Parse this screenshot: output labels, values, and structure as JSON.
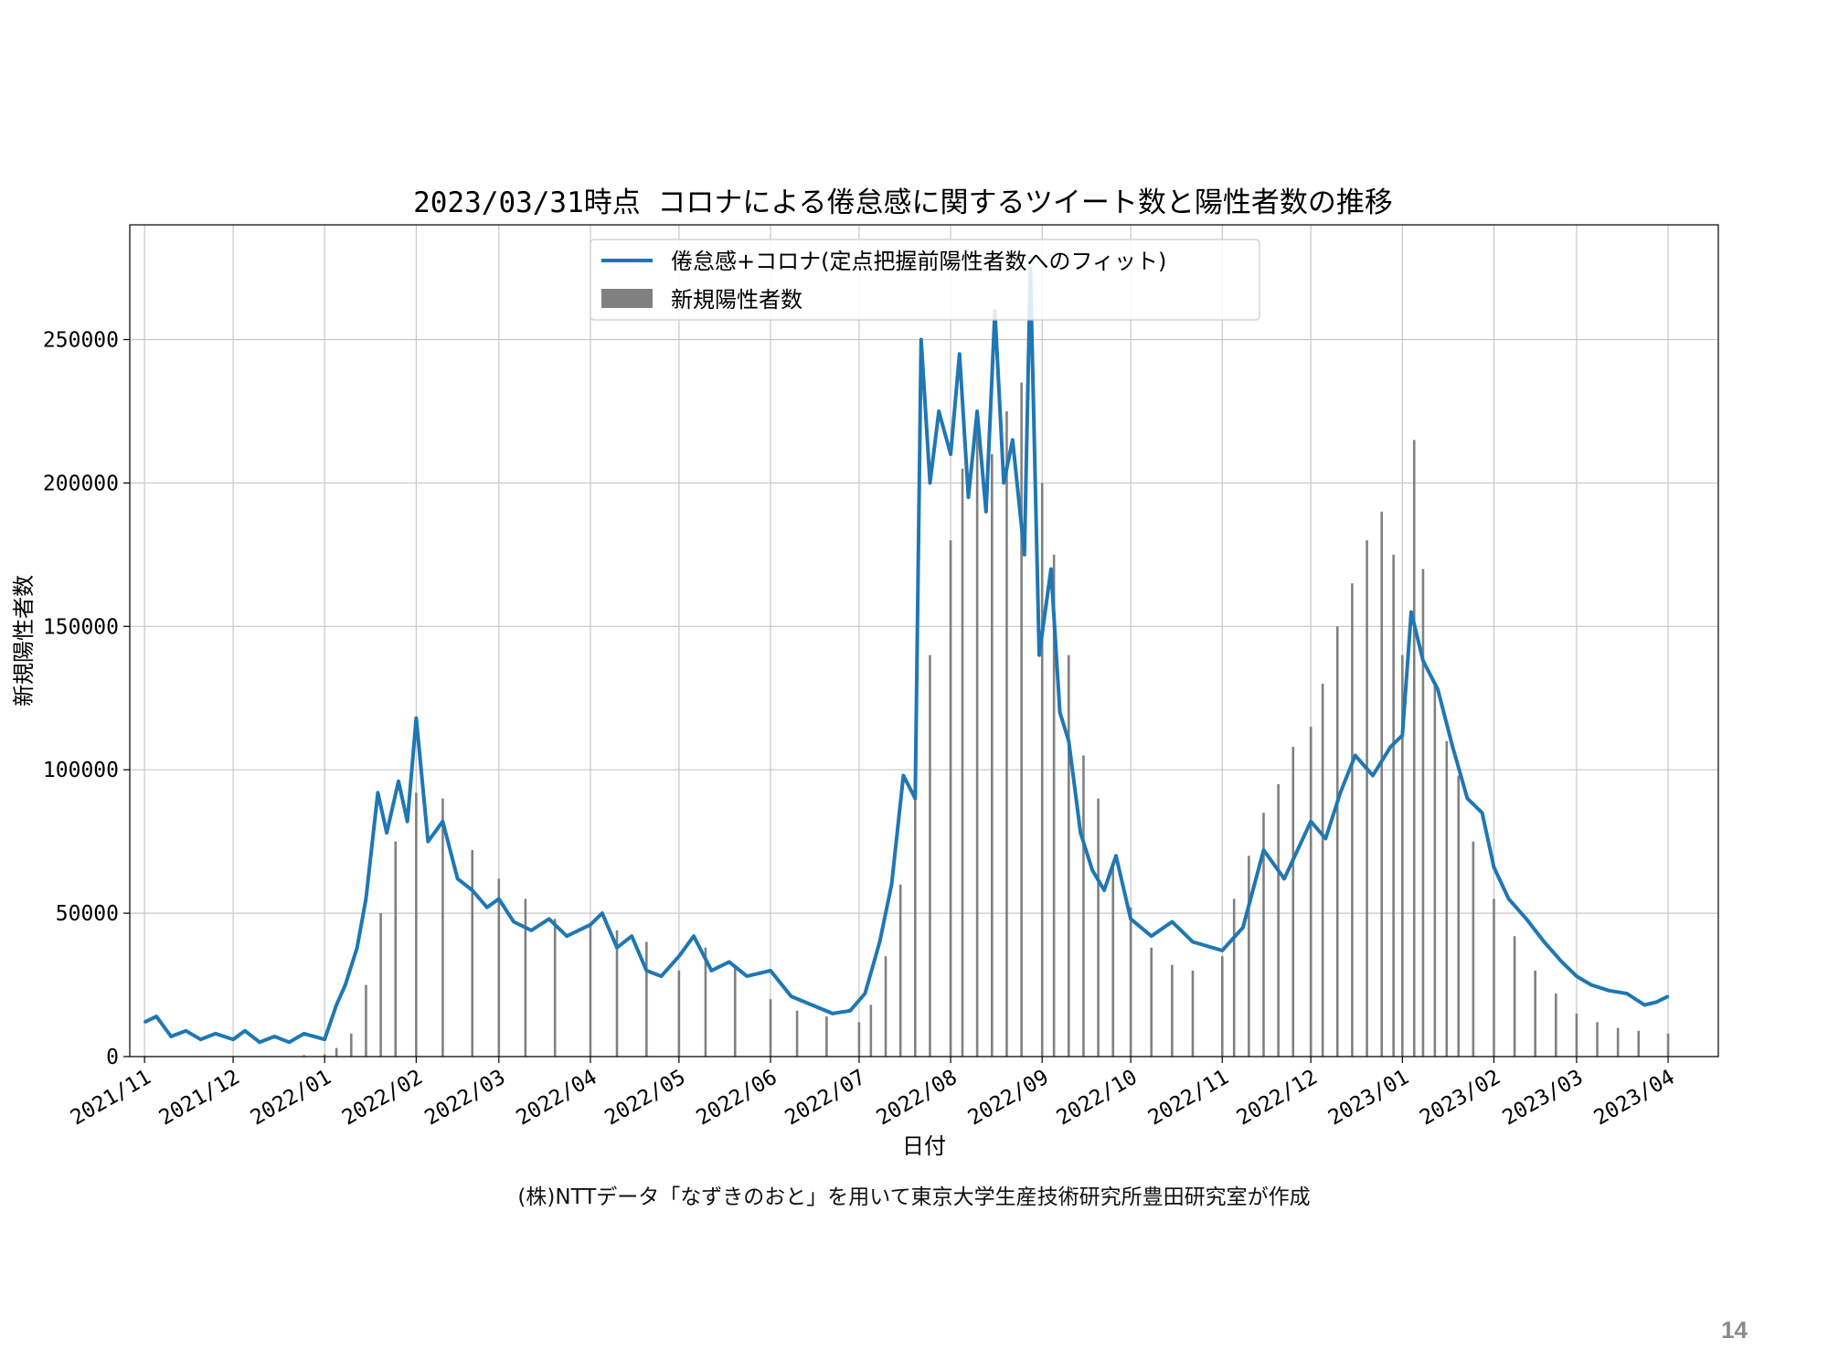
{
  "footnote": "(株)NTTデータ「なずきのおと」を用いて東京大学生産技術研究所豊田研究室が作成",
  "page_number": "14",
  "colors": {
    "line": "#1f77b4",
    "bar": "#808080",
    "grid": "#c8c8c8"
  },
  "chart_data": {
    "type": "bar",
    "title": "2023/03/31時点 コロナによる倦怠感に関するツイート数と陽性者数の推移",
    "xlabel": "日付",
    "ylabel": "新規陽性者数",
    "ylim": [
      0,
      290000
    ],
    "xlim": [
      "2021-10-27",
      "2023-04-18"
    ],
    "x_ticks": [
      "2021-11-01",
      "2021-12-01",
      "2022-01-01",
      "2022-02-01",
      "2022-03-01",
      "2022-04-01",
      "2022-05-01",
      "2022-06-01",
      "2022-07-01",
      "2022-08-01",
      "2022-09-01",
      "2022-10-01",
      "2022-11-01",
      "2022-12-01",
      "2023-01-01",
      "2023-02-01",
      "2023-03-01",
      "2023-04-01"
    ],
    "x_tick_labels": [
      "2021/11",
      "2021/12",
      "2022/01",
      "2022/02",
      "2022/03",
      "2022/04",
      "2022/05",
      "2022/06",
      "2022/07",
      "2022/08",
      "2022/09",
      "2022/10",
      "2022/11",
      "2022/12",
      "2023/01",
      "2023/02",
      "2023/03",
      "2023/04"
    ],
    "y_ticks": [
      0,
      50000,
      100000,
      150000,
      200000,
      250000
    ],
    "y_tick_labels": [
      "0",
      "50000",
      "100000",
      "150000",
      "200000",
      "250000"
    ],
    "grid": true,
    "legend_position": "top-center",
    "bar_width_days": 0.8,
    "series": [
      {
        "name": "倦怠感+コロナ(定点把握前陽性者数へのフィット)",
        "type": "line",
        "x": [
          "2021-11-01",
          "2021-11-05",
          "2021-11-10",
          "2021-11-15",
          "2021-11-20",
          "2021-11-25",
          "2021-12-01",
          "2021-12-05",
          "2021-12-10",
          "2021-12-15",
          "2021-12-20",
          "2021-12-25",
          "2022-01-01",
          "2022-01-05",
          "2022-01-08",
          "2022-01-12",
          "2022-01-15",
          "2022-01-19",
          "2022-01-22",
          "2022-01-26",
          "2022-01-29",
          "2022-02-01",
          "2022-02-05",
          "2022-02-10",
          "2022-02-15",
          "2022-02-20",
          "2022-02-25",
          "2022-03-01",
          "2022-03-06",
          "2022-03-12",
          "2022-03-18",
          "2022-03-24",
          "2022-04-01",
          "2022-04-05",
          "2022-04-10",
          "2022-04-15",
          "2022-04-20",
          "2022-04-25",
          "2022-05-01",
          "2022-05-06",
          "2022-05-12",
          "2022-05-18",
          "2022-05-24",
          "2022-06-01",
          "2022-06-08",
          "2022-06-15",
          "2022-06-22",
          "2022-06-28",
          "2022-07-03",
          "2022-07-08",
          "2022-07-12",
          "2022-07-16",
          "2022-07-20",
          "2022-07-22",
          "2022-07-25",
          "2022-07-28",
          "2022-08-01",
          "2022-08-04",
          "2022-08-07",
          "2022-08-10",
          "2022-08-13",
          "2022-08-16",
          "2022-08-19",
          "2022-08-22",
          "2022-08-26",
          "2022-08-28",
          "2022-08-31",
          "2022-09-04",
          "2022-09-07",
          "2022-09-10",
          "2022-09-14",
          "2022-09-18",
          "2022-09-22",
          "2022-09-26",
          "2022-10-01",
          "2022-10-08",
          "2022-10-15",
          "2022-10-22",
          "2022-11-01",
          "2022-11-08",
          "2022-11-15",
          "2022-11-22",
          "2022-12-01",
          "2022-12-06",
          "2022-12-11",
          "2022-12-16",
          "2022-12-22",
          "2022-12-28",
          "2023-01-01",
          "2023-01-04",
          "2023-01-08",
          "2023-01-13",
          "2023-01-18",
          "2023-01-23",
          "2023-01-28",
          "2023-02-01",
          "2023-02-06",
          "2023-02-12",
          "2023-02-18",
          "2023-02-24",
          "2023-03-01",
          "2023-03-06",
          "2023-03-12",
          "2023-03-18",
          "2023-03-24",
          "2023-03-28",
          "2023-04-01"
        ],
        "values": [
          12000,
          14000,
          7000,
          9000,
          6000,
          8000,
          6000,
          9000,
          5000,
          7000,
          5000,
          8000,
          6000,
          18000,
          25000,
          38000,
          55000,
          92000,
          78000,
          96000,
          82000,
          118000,
          75000,
          82000,
          62000,
          58000,
          52000,
          55000,
          47000,
          44000,
          48000,
          42000,
          46000,
          50000,
          38000,
          42000,
          30000,
          28000,
          35000,
          42000,
          30000,
          33000,
          28000,
          30000,
          21000,
          18000,
          15000,
          16000,
          22000,
          40000,
          60000,
          98000,
          90000,
          250000,
          200000,
          225000,
          210000,
          245000,
          195000,
          225000,
          190000,
          260000,
          200000,
          215000,
          175000,
          275000,
          140000,
          170000,
          120000,
          110000,
          78000,
          65000,
          58000,
          70000,
          48000,
          42000,
          47000,
          40000,
          37000,
          45000,
          72000,
          62000,
          82000,
          76000,
          92000,
          105000,
          98000,
          108000,
          112000,
          155000,
          138000,
          128000,
          108000,
          90000,
          85000,
          66000,
          55000,
          48000,
          40000,
          33000,
          28000,
          25000,
          23000,
          22000,
          18000,
          19000,
          21000
        ],
        "color": "#1f77b4"
      },
      {
        "name": "新規陽性者数",
        "type": "bar",
        "x": [
          "2021-11-01",
          "2021-12-01",
          "2021-12-25",
          "2022-01-01",
          "2022-01-05",
          "2022-01-10",
          "2022-01-15",
          "2022-01-20",
          "2022-01-25",
          "2022-02-01",
          "2022-02-10",
          "2022-02-20",
          "2022-03-01",
          "2022-03-10",
          "2022-03-20",
          "2022-04-01",
          "2022-04-10",
          "2022-04-20",
          "2022-05-01",
          "2022-05-10",
          "2022-05-20",
          "2022-06-01",
          "2022-06-10",
          "2022-06-20",
          "2022-07-01",
          "2022-07-05",
          "2022-07-10",
          "2022-07-15",
          "2022-07-20",
          "2022-07-25",
          "2022-08-01",
          "2022-08-05",
          "2022-08-10",
          "2022-08-15",
          "2022-08-20",
          "2022-08-25",
          "2022-09-01",
          "2022-09-05",
          "2022-09-10",
          "2022-09-15",
          "2022-09-20",
          "2022-09-25",
          "2022-10-01",
          "2022-10-08",
          "2022-10-15",
          "2022-10-22",
          "2022-11-01",
          "2022-11-05",
          "2022-11-10",
          "2022-11-15",
          "2022-11-20",
          "2022-11-25",
          "2022-12-01",
          "2022-12-05",
          "2022-12-10",
          "2022-12-15",
          "2022-12-20",
          "2022-12-25",
          "2022-12-29",
          "2023-01-01",
          "2023-01-05",
          "2023-01-08",
          "2023-01-12",
          "2023-01-16",
          "2023-01-20",
          "2023-01-25",
          "2023-02-01",
          "2023-02-08",
          "2023-02-15",
          "2023-02-22",
          "2023-03-01",
          "2023-03-08",
          "2023-03-15",
          "2023-03-22",
          "2023-04-01"
        ],
        "values": [
          200,
          100,
          500,
          800,
          3000,
          8000,
          25000,
          50000,
          75000,
          92000,
          90000,
          72000,
          62000,
          55000,
          48000,
          46000,
          44000,
          40000,
          30000,
          38000,
          32000,
          20000,
          16000,
          14000,
          12000,
          18000,
          35000,
          60000,
          95000,
          140000,
          180000,
          205000,
          220000,
          210000,
          225000,
          235000,
          200000,
          175000,
          140000,
          105000,
          90000,
          68000,
          52000,
          38000,
          32000,
          30000,
          35000,
          55000,
          70000,
          85000,
          95000,
          108000,
          115000,
          130000,
          150000,
          165000,
          180000,
          190000,
          175000,
          140000,
          215000,
          170000,
          130000,
          110000,
          98000,
          75000,
          55000,
          42000,
          30000,
          22000,
          15000,
          12000,
          10000,
          9000,
          8000
        ],
        "color": "#808080"
      }
    ]
  }
}
